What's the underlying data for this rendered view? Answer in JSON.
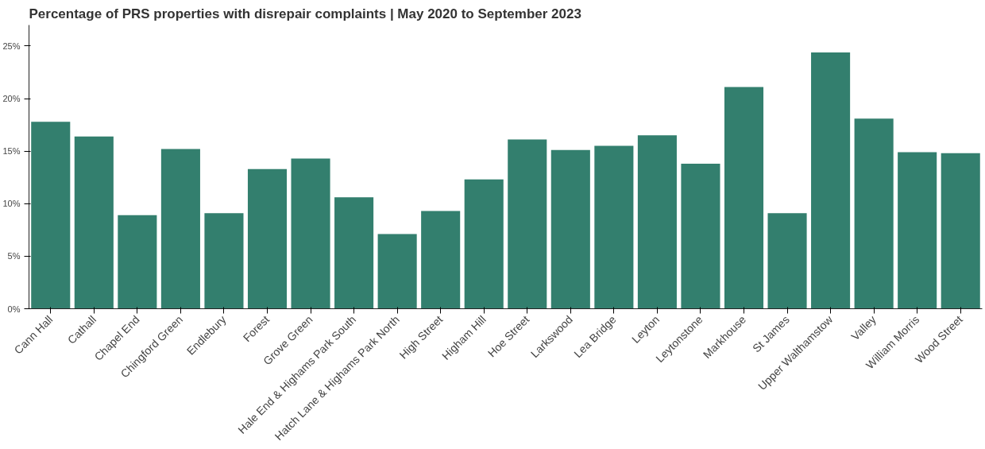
{
  "chart_data": {
    "type": "bar",
    "title": "Percentage of PRS properties with disrepair complaints | May 2020 to September 2023",
    "categories": [
      "Cann Hall",
      "Cathall",
      "Chapel End",
      "Chingford Green",
      "Endlebury",
      "Forest",
      "Grove Green",
      "Hale End & Highams Park South",
      "Hatch Lane & Highams Park North",
      "High Street",
      "Higham Hill",
      "Hoe Street",
      "Larkswood",
      "Lea Bridge",
      "Leyton",
      "Leytonstone",
      "Markhouse",
      "St James",
      "Upper Walthamstow",
      "Valley",
      "William Morris",
      "Wood Street"
    ],
    "values": [
      17.8,
      16.4,
      8.9,
      15.2,
      9.1,
      13.3,
      14.3,
      10.6,
      7.1,
      9.3,
      12.3,
      16.1,
      15.1,
      15.5,
      16.5,
      13.8,
      21.1,
      9.1,
      24.4,
      18.1,
      14.9,
      14.8
    ],
    "color": "#337f6e",
    "ylim": [
      0,
      27
    ],
    "yticks": [
      {
        "value": 0,
        "label": "0%"
      },
      {
        "value": 5,
        "label": "5%"
      },
      {
        "value": 10,
        "label": "10%"
      },
      {
        "value": 15,
        "label": "15%"
      },
      {
        "value": 20,
        "label": "20%"
      },
      {
        "value": 25,
        "label": "25%"
      }
    ],
    "grid": false
  }
}
